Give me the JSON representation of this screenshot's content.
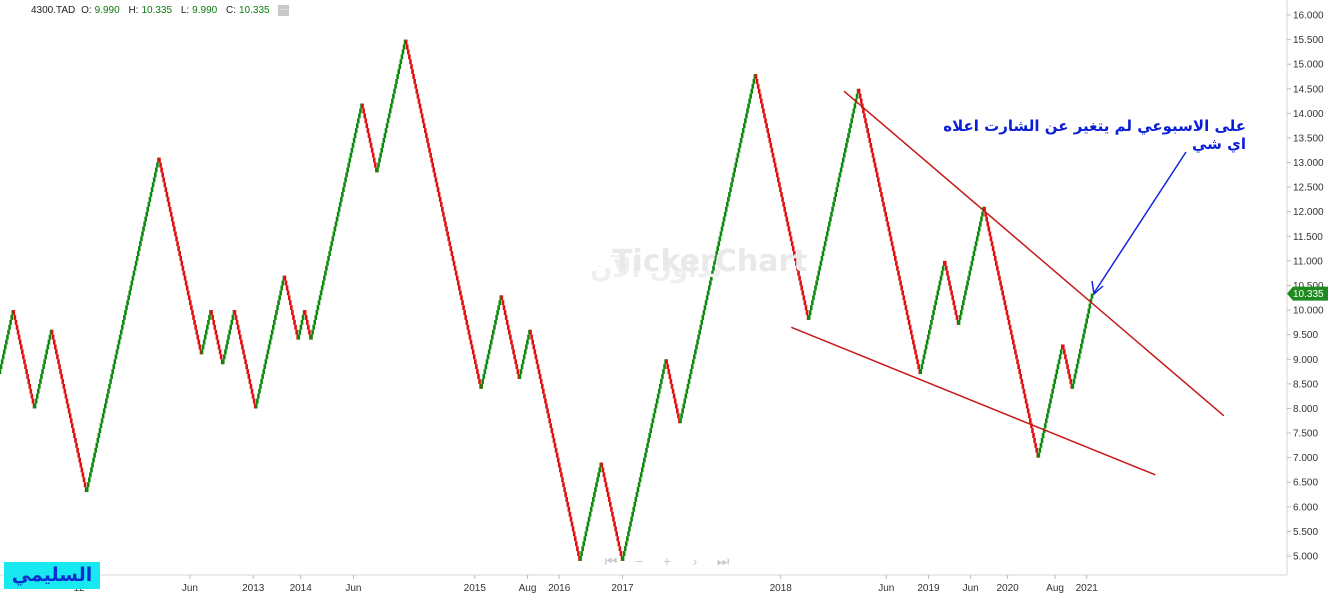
{
  "header": {
    "symbol": "4300.TAD",
    "open_label": "O:",
    "open": "9.990",
    "high_label": "H:",
    "high": "10.335",
    "low_label": "L:",
    "low": "9.990",
    "close_label": "C:",
    "close": "10.335",
    "menu_icon": "menu-dots-icon"
  },
  "watermark": {
    "text": "TickerChart",
    "text_ar": "تداول الآن"
  },
  "annotation": "على الاسبوعي لم يتغير عن الشارت اعلاه اي شي",
  "author_label": "السليمي",
  "navigation": {
    "icons": [
      "first-icon",
      "zoom-out-icon",
      "zoom-in-icon",
      "next-icon",
      "last-icon"
    ],
    "glyphs": [
      "⏮",
      "−",
      "+",
      "›",
      "⏭"
    ]
  },
  "colors": {
    "up": "#0c8a0c",
    "down": "#e01010",
    "trendline": "#c81818",
    "arrow": "#1424e0",
    "price_tag": "#1f8a1f"
  },
  "chart_data": {
    "type": "renko",
    "box_size": 0.1,
    "last_price": "10.335",
    "ylim": [
      4.75,
      16.1
    ],
    "y_ticks": [
      "16.000",
      "15.500",
      "15.000",
      "14.500",
      "14.000",
      "13.500",
      "13.000",
      "12.500",
      "12.000",
      "11.500",
      "11.000",
      "10.500",
      "10.000",
      "9.500",
      "9.000",
      "8.500",
      "8.000",
      "7.500",
      "7.000",
      "6.500",
      "6.000",
      "5.500",
      "5.000"
    ],
    "x_ticks": [
      "12",
      "Jun",
      "2013",
      "2014",
      "Jun",
      "2015",
      "Aug",
      "2016",
      "2017",
      "2018",
      "Jun",
      "2019",
      "Jun",
      "2020",
      "Aug",
      "2021"
    ],
    "x_tick_index": [
      15,
      36,
      48,
      57,
      67,
      90,
      100,
      106,
      118,
      148,
      168,
      176,
      184,
      191,
      200,
      206
    ],
    "swing_points": [
      8.7,
      10.0,
      8.0,
      9.6,
      6.3,
      13.1,
      9.1,
      10.0,
      8.9,
      10.0,
      8.0,
      10.7,
      9.4,
      10.0,
      9.4,
      14.2,
      12.8,
      15.5,
      8.4,
      10.3,
      8.6,
      9.6,
      4.9,
      6.9,
      4.9,
      9.0,
      7.7,
      14.8,
      9.8,
      14.5,
      8.7,
      11.0,
      9.7,
      12.1,
      7.0,
      9.3,
      8.4,
      10.335
    ],
    "box_count": 208,
    "trendlines": [
      {
        "name": "upper",
        "start": [
          160,
          14.45
        ],
        "end": [
          232,
          7.85
        ]
      },
      {
        "name": "lower",
        "start": [
          150,
          9.65
        ],
        "end": [
          219,
          6.65
        ]
      }
    ]
  }
}
